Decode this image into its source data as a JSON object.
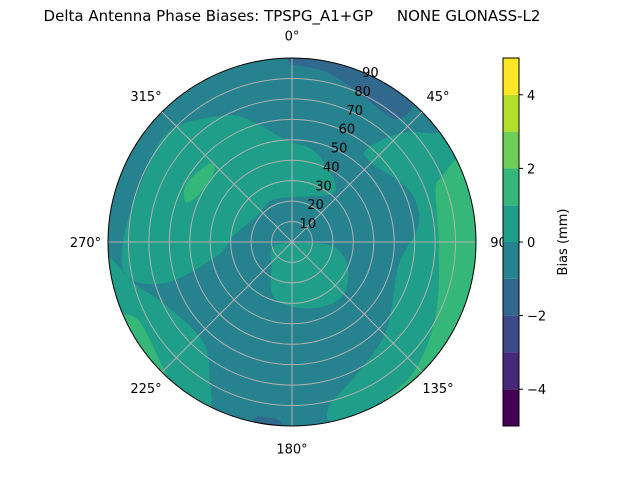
{
  "chart_data": {
    "type": "polar-contourf",
    "title": "Delta Antenna Phase Biases: TPSPG_A1+GP     NONE GLONASS-L2",
    "angular_ticks": [
      "0°",
      "45°",
      "90",
      "135°",
      "180°",
      "225°",
      "270°",
      "315°"
    ],
    "angular_tick_values": [
      0,
      45,
      90,
      135,
      180,
      225,
      270,
      315
    ],
    "radial_ticks": [
      "10",
      "20",
      "30",
      "40",
      "50",
      "60",
      "70",
      "80",
      "90"
    ],
    "radial_tick_values": [
      10,
      20,
      30,
      40,
      50,
      60,
      70,
      80,
      90
    ],
    "rlim": [
      0,
      90
    ],
    "theta_direction": "clockwise",
    "theta_zero": "north",
    "grid": true,
    "background_level": [
      -1,
      0
    ],
    "regions": [
      {
        "level": [
          -2,
          -1
        ],
        "points": [
          [
            0,
            90
          ],
          [
            10,
            90
          ],
          [
            20,
            90
          ],
          [
            30,
            90
          ],
          [
            40,
            90
          ],
          [
            42,
            85
          ],
          [
            39,
            78
          ],
          [
            24,
            80
          ],
          [
            11,
            85
          ],
          [
            0,
            87
          ]
        ]
      },
      {
        "level": [
          -2,
          -1
        ],
        "points": [
          [
            183,
            90
          ],
          [
            187,
            90
          ],
          [
            192,
            90
          ],
          [
            191,
            87
          ],
          [
            185,
            87
          ]
        ]
      },
      {
        "level": [
          0,
          1
        ],
        "points": [
          [
            312.6,
            80.8
          ],
          [
            332.7,
            69.7
          ],
          [
            343.3,
            60.5
          ],
          [
            356.8,
            49.8
          ],
          [
            12.8,
            46.1
          ],
          [
            32,
            37.7
          ],
          [
            39.9,
            31.1
          ],
          [
            17.4,
            23.3
          ],
          [
            335.8,
            22.6
          ],
          [
            305.7,
            21.4
          ],
          [
            275.5,
            28.9
          ],
          [
            259.3,
            37.5
          ],
          [
            252,
            64.4
          ],
          [
            258.3,
            82.4
          ],
          [
            272,
            82.3
          ],
          [
            293.8,
            79.2
          ]
        ]
      },
      {
        "level": [
          0,
          1
        ],
        "points": [
          [
            257.2,
            9.5
          ],
          [
            97.4,
            3.8
          ],
          [
            96,
            20.1
          ],
          [
            113.5,
            29.7
          ],
          [
            134.1,
            35.7
          ],
          [
            151.9,
            35.5
          ],
          [
            176.2,
            32.1
          ],
          [
            199.3,
            28
          ],
          [
            220.3,
            15.5
          ]
        ]
      },
      {
        "level": [
          0,
          1
        ],
        "points": [
          [
            52.3,
            86.8
          ],
          [
            44.6,
            74.6
          ],
          [
            38.8,
            57.7
          ],
          [
            45.7,
            55
          ],
          [
            66,
            62.6
          ],
          [
            81.5,
            62.8
          ],
          [
            101,
            53.4
          ],
          [
            121.1,
            57.4
          ],
          [
            137,
            64.9
          ],
          [
            156.1,
            73.3
          ],
          [
            167.1,
            82.1
          ],
          [
            167,
            90
          ],
          [
            150,
            90
          ],
          [
            130,
            90
          ],
          [
            110,
            90
          ],
          [
            90,
            90
          ],
          [
            70,
            90
          ],
          [
            55,
            90
          ]
        ]
      },
      {
        "level": [
          1,
          2
        ],
        "points": [
          [
            63.4,
            89.4
          ],
          [
            66.5,
            80.1
          ],
          [
            70.1,
            74.7
          ],
          [
            93,
            72
          ],
          [
            117.2,
            79
          ],
          [
            135.8,
            86.8
          ],
          [
            149,
            89.4
          ],
          [
            140,
            90
          ],
          [
            120,
            90
          ],
          [
            100,
            90
          ],
          [
            80,
            90
          ],
          [
            65,
            90
          ]
        ]
      },
      {
        "level": [
          0,
          1
        ],
        "points": [
          [
            265,
            90
          ],
          [
            255.5,
            80
          ],
          [
            242.9,
            68.7
          ],
          [
            221.4,
            65.5
          ],
          [
            210.3,
            79.5
          ],
          [
            207,
            90
          ],
          [
            220,
            90
          ],
          [
            235,
            90
          ],
          [
            250,
            90
          ]
        ]
      },
      {
        "level": [
          1,
          2
        ],
        "points": [
          [
            246,
            90
          ],
          [
            242,
            84
          ],
          [
            225.3,
            88.3
          ],
          [
            222,
            90
          ],
          [
            234,
            90
          ]
        ]
      },
      {
        "level": [
          1,
          2
        ],
        "points": [
          [
            299.2,
            58.9
          ],
          [
            313.8,
            55.5
          ],
          [
            311.1,
            51
          ],
          [
            295.5,
            51.6
          ],
          [
            290.7,
            55.8
          ]
        ]
      }
    ],
    "colorbar": {
      "label": "Bias (mm)",
      "levels": [
        -5,
        -4,
        -3,
        -2,
        -1,
        0,
        1,
        2,
        3,
        4,
        5
      ],
      "colors": [
        "#440154",
        "#482878",
        "#3e4989",
        "#31688e",
        "#26828e",
        "#1f9e89",
        "#35b779",
        "#6ece58",
        "#b5de2b",
        "#fde725"
      ],
      "ticks": [
        "−4",
        "−2",
        "0",
        "2",
        "4"
      ],
      "tick_values": [
        -4,
        -2,
        0,
        2,
        4
      ]
    }
  }
}
